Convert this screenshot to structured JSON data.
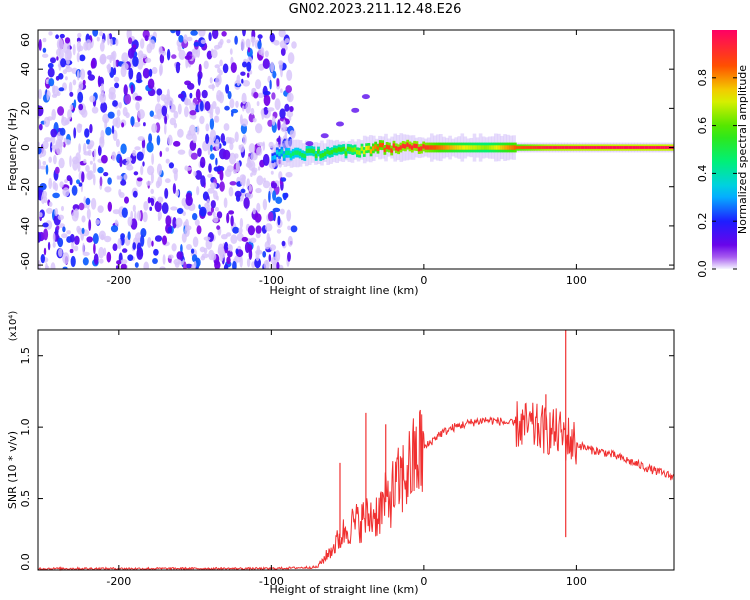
{
  "title": "GN02.2023.211.12.48.E26",
  "chart_data": [
    {
      "type": "heatmap",
      "xlabel": "Height of straight line (km)",
      "ylabel": "Frequency (Hz)",
      "xlim": [
        -253,
        164
      ],
      "ylim": [
        -62,
        60
      ],
      "xticks": [
        -200,
        -100,
        0,
        100
      ],
      "yticks": [
        60,
        40,
        20,
        0,
        -20,
        -40,
        -60
      ],
      "yticklabels": [
        "60",
        "40",
        "20",
        "0",
        "-20",
        "-40",
        "-60"
      ],
      "colorbar": {
        "label": "Normalized spectral amplitude",
        "range": [
          0,
          1
        ],
        "ticks": [
          0.0,
          0.2,
          0.4,
          0.6,
          0.8
        ],
        "ticklabels": [
          "0.0",
          "0.2",
          "0.4",
          "0.6",
          "0.8"
        ]
      },
      "noise_region_x": [
        -253,
        -85
      ],
      "signal_track": {
        "x": [
          -100,
          -90,
          -80,
          -70,
          -60,
          -50,
          -40,
          -30,
          -20,
          -10,
          0,
          20,
          40,
          60,
          80,
          100,
          130,
          164
        ],
        "frequency": [
          -4,
          -3,
          -3,
          -3,
          -2,
          -2,
          -1,
          0,
          0,
          0,
          0,
          0,
          0,
          0,
          0,
          0,
          0,
          0
        ],
        "amplitude": [
          0.3,
          0.45,
          0.5,
          0.55,
          0.55,
          0.6,
          0.7,
          0.85,
          0.9,
          0.92,
          0.9,
          0.75,
          0.65,
          0.85,
          0.95,
          0.97,
          0.98,
          0.98
        ]
      },
      "harmonic_track": {
        "x": [
          -75,
          -65,
          -55,
          -45,
          -38
        ],
        "frequency": [
          2,
          6,
          12,
          19,
          26
        ]
      },
      "grid": false
    },
    {
      "type": "line",
      "xlabel": "Height of straight line (km)",
      "ylabel": "SNR (10 * v/v)",
      "yscale_label": "(x10⁴)",
      "xlim": [
        -253,
        164
      ],
      "ylim": [
        0,
        1.68
      ],
      "xticks": [
        -200,
        -100,
        0,
        100
      ],
      "yticks": [
        0.0,
        0.5,
        1.0,
        1.5
      ],
      "yticklabels": [
        "0.0",
        "0.5",
        "1.0",
        "1.5"
      ],
      "series": [
        {
          "color": "#f03030",
          "x": [
            -253,
            -100,
            -70,
            -60,
            -50,
            -40,
            -30,
            -20,
            -10,
            0,
            10,
            20,
            30,
            40,
            50,
            60,
            70,
            80,
            90,
            94,
            100,
            110,
            120,
            130,
            140,
            150,
            164
          ],
          "y": [
            0.01,
            0.01,
            0.02,
            0.15,
            0.3,
            0.35,
            0.4,
            0.55,
            0.7,
            0.85,
            0.95,
            1.0,
            1.03,
            1.05,
            1.04,
            1.02,
            1.0,
            0.98,
            0.95,
            0.92,
            0.88,
            0.84,
            0.82,
            0.78,
            0.74,
            0.7,
            0.65
          ]
        }
      ],
      "spikes": [
        {
          "x": -55,
          "y": 0.75
        },
        {
          "x": -38,
          "y": 1.1
        },
        {
          "x": -25,
          "y": 1.02
        },
        {
          "x": 80,
          "y": 1.23
        },
        {
          "x": 93,
          "y": 1.68
        },
        {
          "x": 93,
          "y": 0.23
        }
      ],
      "grid": false
    }
  ]
}
